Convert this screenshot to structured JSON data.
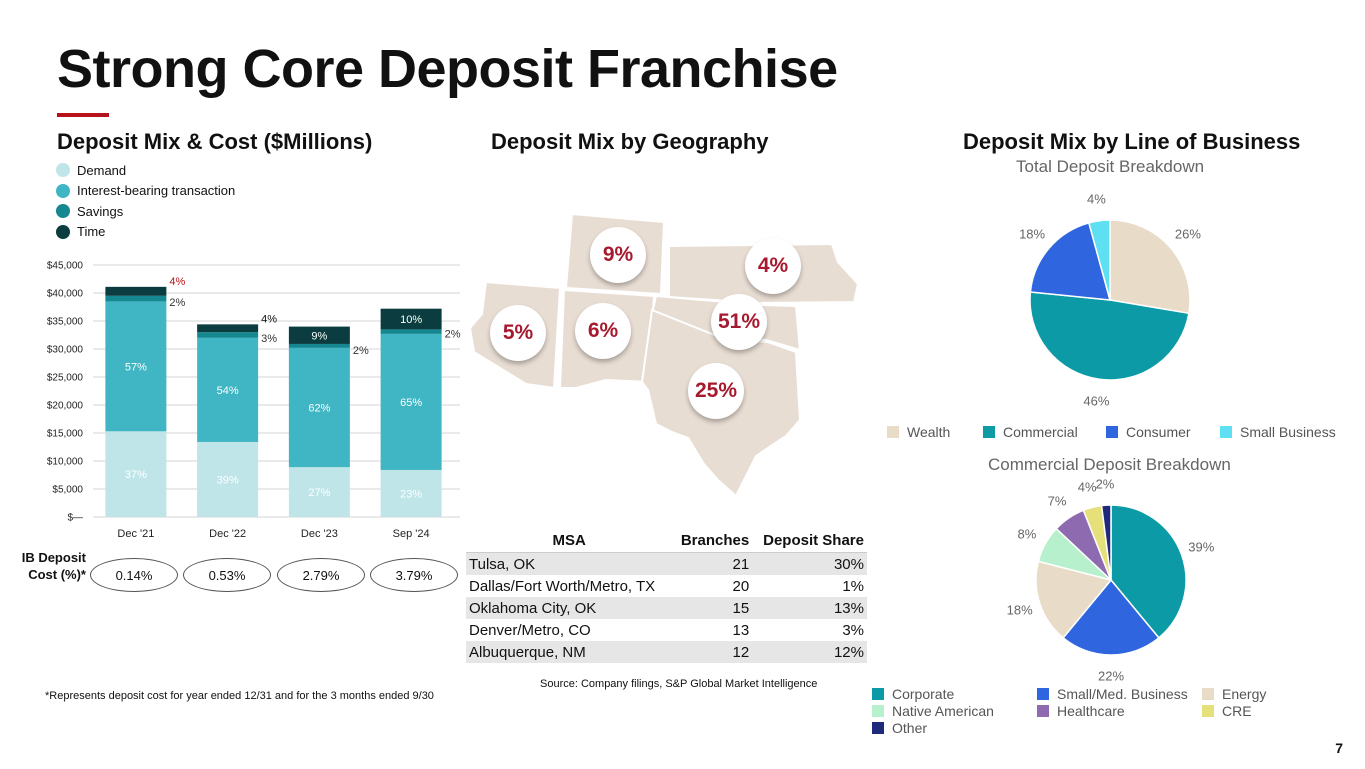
{
  "header": {
    "title": "Strong Core Deposit Franchise",
    "page_number": "7"
  },
  "colors": {
    "accent": "#b5121b",
    "demand": "#bfe5e8",
    "ib_transaction": "#40b5c3",
    "savings": "#148790",
    "time": "#0b3d40"
  },
  "mix_cost": {
    "title": "Deposit Mix & Cost ($Millions)",
    "legend": [
      "Demand",
      "Interest-bearing transaction",
      "Savings",
      "Time"
    ],
    "ib_label": "IB Deposit Cost (%)*",
    "ib_costs": [
      "0.14%",
      "0.53%",
      "2.79%",
      "3.79%"
    ],
    "footnote": "*Represents deposit cost for year ended 12/31 and for the 3 months ended 9/30"
  },
  "geography": {
    "title": "Deposit Mix by Geography",
    "bubbles": [
      {
        "state": "WY",
        "label": "9%"
      },
      {
        "state": "KS",
        "label": "4%"
      },
      {
        "state": "AZ",
        "label": "5%"
      },
      {
        "state": "NM",
        "label": "6%"
      },
      {
        "state": "OK",
        "label": "51%"
      },
      {
        "state": "TX",
        "label": "25%"
      }
    ],
    "table": {
      "headers": [
        "MSA",
        "Branches",
        "Deposit Share"
      ],
      "rows": [
        [
          "Tulsa, OK",
          "21",
          "30%"
        ],
        [
          "Dallas/Fort Worth/Metro, TX",
          "20",
          "1%"
        ],
        [
          "Oklahoma City, OK",
          "15",
          "13%"
        ],
        [
          "Denver/Metro, CO",
          "13",
          "3%"
        ],
        [
          "Albuquerque, NM",
          "12",
          "12%"
        ]
      ]
    },
    "source": "Source: Company filings, S&P Global Market Intelligence"
  },
  "lob": {
    "title": "Deposit Mix by Line of Business",
    "total_subtitle": "Total Deposit Breakdown",
    "total_legend": [
      "Wealth",
      "Commercial",
      "Consumer",
      "Small Business"
    ],
    "commercial_subtitle": "Commercial Deposit Breakdown",
    "commercial_legend": [
      "Corporate",
      "Small/Med. Business",
      "Energy",
      "Native American",
      "Healthcare",
      "CRE",
      "Other"
    ]
  },
  "chart_data": [
    {
      "type": "bar",
      "stacked": true,
      "categories": [
        "Dec '21",
        "Dec '22",
        "Dec '23",
        "Sep '24"
      ],
      "series": [
        {
          "name": "Demand",
          "values": [
            15300,
            13400,
            8900,
            8400
          ],
          "labels": [
            "37%",
            "39%",
            "27%",
            "23%"
          ]
        },
        {
          "name": "Interest-bearing transaction",
          "values": [
            23200,
            18600,
            21300,
            24300
          ],
          "labels": [
            "57%",
            "54%",
            "62%",
            "65%"
          ]
        },
        {
          "name": "Savings",
          "values": [
            1000,
            1000,
            700,
            800
          ],
          "labels": [
            "2%",
            "3%",
            "2%",
            "2%"
          ]
        },
        {
          "name": "Time",
          "values": [
            1600,
            1400,
            3100,
            3700
          ],
          "labels": [
            "4%",
            "4%",
            "9%",
            "10%"
          ]
        }
      ],
      "y_ticks": [
        "$—",
        "$5,000",
        "$10,000",
        "$15,000",
        "$20,000",
        "$25,000",
        "$30,000",
        "$35,000",
        "$40,000",
        "$45,000"
      ],
      "ylim": [
        0,
        45000
      ],
      "grid": true
    },
    {
      "type": "pie",
      "title": "Total Deposit Breakdown",
      "labels": [
        "Wealth",
        "Commercial",
        "Consumer",
        "Small Business"
      ],
      "values": [
        26,
        46,
        18,
        4
      ],
      "value_labels": [
        "26%",
        "46%",
        "18%",
        "4%"
      ],
      "colors": [
        "#e8dcc8",
        "#0b9aa6",
        "#2f66e0",
        "#5fe0f2"
      ]
    },
    {
      "type": "pie",
      "title": "Commercial Deposit Breakdown",
      "labels": [
        "Corporate",
        "Small/Med. Business",
        "Energy",
        "Native American",
        "Healthcare",
        "CRE",
        "Other"
      ],
      "values": [
        39,
        22,
        18,
        8,
        7,
        4,
        2
      ],
      "value_labels": [
        "39%",
        "22%",
        "18%",
        "8%",
        "7%",
        "4%",
        "2%"
      ],
      "colors": [
        "#0b9aa6",
        "#2f66e0",
        "#e8dcc8",
        "#b7f0cc",
        "#8e6ab0",
        "#e5e07a",
        "#1f2a7a"
      ]
    }
  ]
}
